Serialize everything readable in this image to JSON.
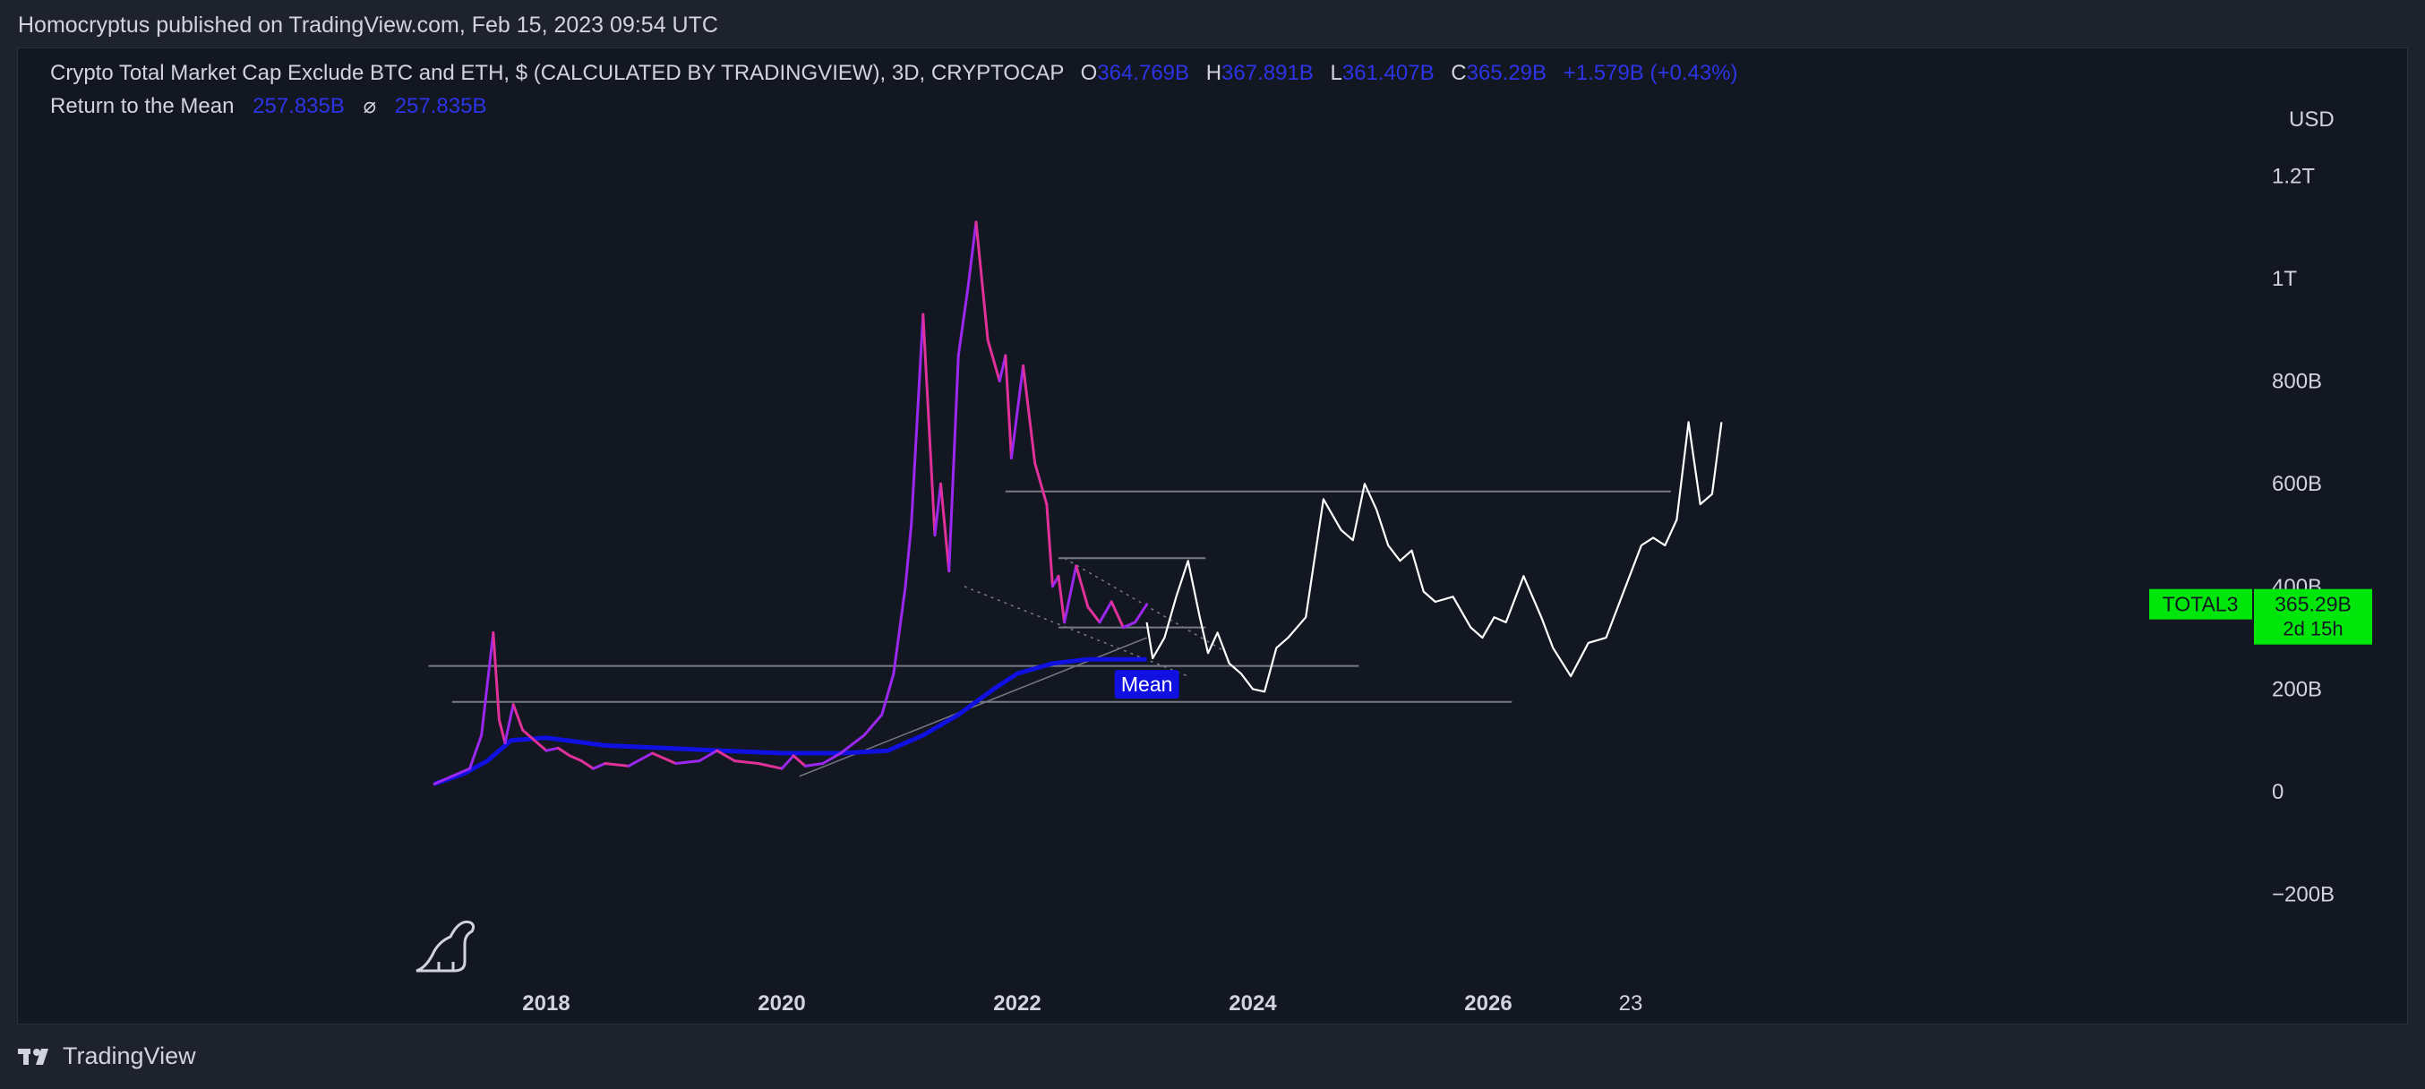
{
  "header": {
    "published_text": "Homocryptus published on TradingView.com, Feb 15, 2023 09:54 UTC"
  },
  "legend": {
    "symbol_text": "Crypto Total Market Cap Exclude BTC and ETH, $ (CALCULATED BY TRADINGVIEW), 3D, CRYPTOCAP",
    "open_key": "O",
    "open_val": "364.769B",
    "high_key": "H",
    "high_val": "367.891B",
    "low_key": "L",
    "low_val": "361.407B",
    "close_key": "C",
    "close_val": "365.29B",
    "change_val": "+1.579B (+0.43%)",
    "indicator_name": "Return to the Mean",
    "indicator_val1": "257.835B",
    "indicator_sep": "⌀",
    "indicator_val2": "257.835B"
  },
  "axis": {
    "currency": "USD",
    "countdown_label": "23"
  },
  "price_tag": {
    "symbol": "TOTAL3",
    "price": "365.29B",
    "countdown": "2d 15h"
  },
  "mean_label": "Mean",
  "footer": {
    "brand": "TradingView"
  },
  "colors": {
    "background": "#131722",
    "outer": "#1e222d",
    "candles_up": "#9b27f0",
    "candles_down": "#e0309a",
    "mean_line": "#1010e0",
    "projection": "#ffffff",
    "level_lines": "#787b86",
    "price_tag_bg": "#00e60b"
  },
  "chart_data": {
    "type": "line",
    "title": "Crypto Total Market Cap Exclude BTC and ETH, $ (CALCULATED BY TRADINGVIEW), 3D, CRYPTOCAP",
    "xlabel": "",
    "ylabel": "",
    "y_unit": "USD",
    "ylim": [
      -250,
      1350
    ],
    "xlim": [
      2016.6,
      2027.7
    ],
    "y_ticks": [
      {
        "value": -200,
        "label": "−200B"
      },
      {
        "value": 0,
        "label": "0"
      },
      {
        "value": 200,
        "label": "200B"
      },
      {
        "value": 400,
        "label": "400B"
      },
      {
        "value": 600,
        "label": "600B"
      },
      {
        "value": 800,
        "label": "800B"
      },
      {
        "value": 1000,
        "label": "1T"
      },
      {
        "value": 1200,
        "label": "1.2T"
      }
    ],
    "x_ticks": [
      {
        "value": 2018,
        "label": "2018"
      },
      {
        "value": 2020,
        "label": "2020"
      },
      {
        "value": 2022,
        "label": "2022"
      },
      {
        "value": 2024,
        "label": "2024"
      },
      {
        "value": 2026,
        "label": "2026"
      }
    ],
    "series": [
      {
        "name": "TOTAL3",
        "style": "price",
        "x": [
          2017.05,
          2017.2,
          2017.35,
          2017.45,
          2017.55,
          2017.6,
          2017.65,
          2017.72,
          2017.8,
          2017.9,
          2018.0,
          2018.1,
          2018.2,
          2018.3,
          2018.4,
          2018.5,
          2018.7,
          2018.9,
          2019.1,
          2019.3,
          2019.45,
          2019.6,
          2019.8,
          2020.0,
          2020.1,
          2020.2,
          2020.35,
          2020.5,
          2020.7,
          2020.85,
          2020.95,
          2021.05,
          2021.1,
          2021.2,
          2021.3,
          2021.35,
          2021.42,
          2021.5,
          2021.58,
          2021.65,
          2021.75,
          2021.85,
          2021.9,
          2021.95,
          2022.05,
          2022.15,
          2022.25,
          2022.3,
          2022.35,
          2022.4,
          2022.5,
          2022.6,
          2022.7,
          2022.8,
          2022.9,
          2023.0,
          2023.1
        ],
        "y": [
          15,
          30,
          45,
          110,
          310,
          140,
          95,
          170,
          120,
          100,
          80,
          85,
          70,
          60,
          45,
          55,
          50,
          75,
          55,
          60,
          80,
          60,
          55,
          45,
          70,
          50,
          55,
          75,
          110,
          150,
          230,
          400,
          520,
          930,
          500,
          600,
          430,
          850,
          980,
          1110,
          880,
          800,
          850,
          650,
          830,
          640,
          560,
          400,
          420,
          330,
          440,
          360,
          330,
          370,
          320,
          330,
          365
        ]
      },
      {
        "name": "Return to the Mean",
        "style": "mean",
        "x": [
          2017.05,
          2017.3,
          2017.5,
          2017.7,
          2018.0,
          2018.5,
          2019.0,
          2019.5,
          2020.0,
          2020.5,
          2020.9,
          2021.2,
          2021.5,
          2021.8,
          2022.0,
          2022.3,
          2022.6,
          2022.9,
          2023.1
        ],
        "y": [
          15,
          35,
          60,
          100,
          105,
          90,
          85,
          80,
          75,
          75,
          80,
          110,
          150,
          200,
          230,
          250,
          258,
          258,
          258
        ]
      },
      {
        "name": "",
        "style": "projection",
        "x": [
          2023.1,
          2023.15,
          2023.25,
          2023.35,
          2023.45,
          2023.55,
          2023.62,
          2023.7,
          2023.8,
          2023.9,
          2024.0,
          2024.1,
          2024.2,
          2024.3,
          2024.45,
          2024.6,
          2024.75,
          2024.85,
          2024.95,
          2025.05,
          2025.15,
          2025.25,
          2025.35,
          2025.45,
          2025.55,
          2025.7,
          2025.85,
          2025.95,
          2026.05,
          2026.15,
          2026.3,
          2026.45,
          2026.55,
          2026.7,
          2026.85,
          2027.0,
          2027.15,
          2027.3,
          2027.4,
          2027.5,
          2027.6,
          2027.7,
          2027.8,
          2027.9,
          2027.98
        ],
        "y": [
          330,
          260,
          300,
          380,
          450,
          340,
          270,
          310,
          250,
          230,
          200,
          195,
          280,
          300,
          340,
          570,
          510,
          490,
          600,
          550,
          480,
          450,
          470,
          390,
          370,
          380,
          320,
          300,
          340,
          330,
          420,
          340,
          280,
          225,
          290,
          300,
          390,
          480,
          495,
          480,
          530,
          720,
          560,
          580,
          720
        ]
      }
    ],
    "levels": [
      {
        "y": 585,
        "x_start": 2021.9,
        "x_end": 2027.55
      },
      {
        "y": 455,
        "x_start": 2022.35,
        "x_end": 2023.6
      },
      {
        "y": 320,
        "x_start": 2022.35,
        "x_end": 2023.6
      },
      {
        "y": 245,
        "x_start": 2017.0,
        "x_end": 2024.9
      },
      {
        "y": 175,
        "x_start": 2017.2,
        "x_end": 2026.2
      }
    ],
    "trendlines": [
      {
        "x1": 2020.15,
        "y1": 30,
        "x2": 2023.1,
        "y2": 300,
        "style": "solid"
      },
      {
        "x1": 2021.55,
        "y1": 400,
        "x2": 2023.45,
        "y2": 225,
        "style": "dotted"
      },
      {
        "x1": 2022.4,
        "y1": 455,
        "x2": 2023.75,
        "y2": 275,
        "style": "dotted"
      }
    ],
    "grid": false,
    "legend_position": "top-left",
    "last_value": {
      "y": 365.29,
      "label": "365.29B"
    }
  }
}
